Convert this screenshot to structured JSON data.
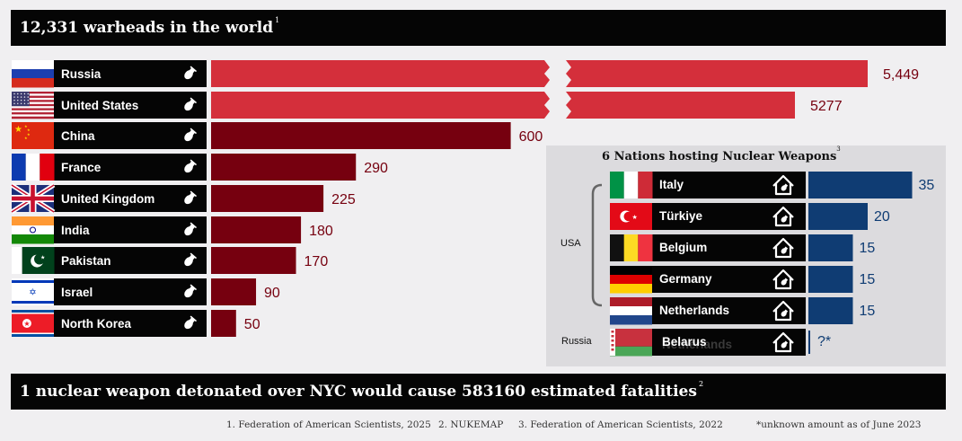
{
  "header": {
    "title": "12,331 warheads in the world",
    "note": "1"
  },
  "chart_data": [
    {
      "type": "bar",
      "orientation": "horizontal",
      "title": "12,331 warheads in the world",
      "categories": [
        "Russia",
        "United States",
        "China",
        "France",
        "United Kingdom",
        "India",
        "Pakistan",
        "Israel",
        "North Korea"
      ],
      "values": [
        5449,
        5277,
        600,
        290,
        225,
        180,
        170,
        90,
        50
      ],
      "value_labels": [
        "5,449",
        "5277",
        "600",
        "290",
        "225",
        "180",
        "170",
        "90",
        "50"
      ],
      "axis_break": true,
      "colors": {
        "large": "#d42f3b",
        "default": "#76000f",
        "label": "#76000f"
      }
    },
    {
      "type": "bar",
      "orientation": "horizontal",
      "title": "6 Nations hosting Nuclear Weapons",
      "title_note": "3",
      "categories": [
        "Italy",
        "Türkiye",
        "Belgium",
        "Germany",
        "Netherlands",
        "Belarus"
      ],
      "values": [
        35,
        20,
        15,
        15,
        15,
        null
      ],
      "value_labels": [
        "35",
        "20",
        "15",
        "15",
        "15",
        "?*"
      ],
      "groups": [
        {
          "name": "USA",
          "members": [
            "Italy",
            "Türkiye",
            "Belgium",
            "Germany",
            "Netherlands"
          ]
        },
        {
          "name": "Russia",
          "members": [
            "Belarus"
          ]
        }
      ],
      "colors": {
        "bar": "#0f3c73",
        "label": "#0f3c73"
      }
    }
  ],
  "ghost_label": "Netherlands",
  "bottom": {
    "text": "1 nuclear weapon detonated over NYC would cause 583160 estimated fatalities",
    "note": "2"
  },
  "footer": {
    "source1": "1. Federation of American Scientists, 2025",
    "source2": "2. NUKEMAP",
    "source3": "3. Federation of American Scientists, 2022",
    "note": "*unknown amount as of June 2023"
  },
  "icons": {
    "warhead": "warhead-icon",
    "host": "host-house-icon"
  }
}
